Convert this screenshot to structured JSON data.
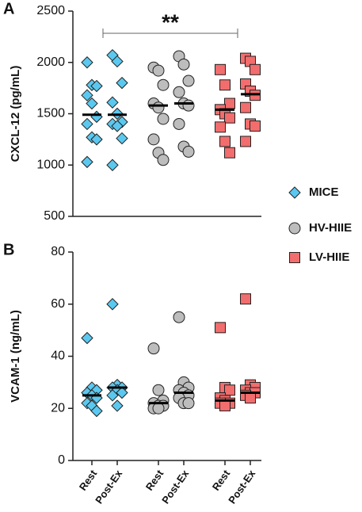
{
  "chart_data": [
    {
      "type": "dot",
      "panel": "A",
      "y_label": "CXCL-12 (pg/mL)",
      "ylim": [
        500,
        2500
      ],
      "yticks": [
        500,
        1000,
        1500,
        2000,
        2500
      ],
      "annotation": "**",
      "series": [
        {
          "name": "MICE",
          "color": "#5bc8ef",
          "marker": "diamond",
          "values": [
            [
              2000,
              1780,
              1770,
              1680,
              1600,
              1470,
              1400,
              1270,
              1250,
              1030
            ],
            [
              2070,
              2010,
              1800,
              1610,
              1500,
              1420,
              1400,
              1380,
              1260,
              1000
            ],
            null,
            null,
            null,
            null
          ],
          "medians": [
            1490,
            1490,
            null,
            null,
            null,
            null
          ]
        },
        {
          "name": "HV-HIIE",
          "color": "#bdbdbd",
          "marker": "circle",
          "values": [
            null,
            null,
            [
              1950,
              1920,
              1780,
              1600,
              1560,
              1450,
              1250,
              1120,
              1050
            ],
            [
              2060,
              1980,
              1820,
              1710,
              1600,
              1580,
              1400,
              1180,
              1130
            ],
            null,
            null
          ],
          "medians": [
            null,
            null,
            1580,
            1600,
            null,
            null
          ]
        },
        {
          "name": "LV-HIIE",
          "color": "#f26d6d",
          "marker": "square",
          "values": [
            null,
            null,
            null,
            null,
            [
              1930,
              1780,
              1600,
              1540,
              1500,
              1460,
              1370,
              1230,
              1120
            ],
            [
              2040,
              2010,
              1930,
              1790,
              1720,
              1680,
              1560,
              1400,
              1380,
              1230
            ]
          ],
          "medians": [
            null,
            null,
            null,
            null,
            1540,
            1690
          ]
        }
      ]
    },
    {
      "type": "dot",
      "panel": "B",
      "y_label": "VCAM-1 (ng/mL)",
      "ylim": [
        0,
        80
      ],
      "yticks": [
        0,
        20,
        40,
        60,
        80
      ],
      "categories": [
        "Rest",
        "Post-Ex",
        "Rest",
        "Post-Ex",
        "Rest",
        "Post-Ex"
      ],
      "series": [
        {
          "color": "#5bc8ef",
          "marker": "diamond",
          "values": [
            [
              47,
              28,
              27,
              26,
              25,
              24,
              22,
              21,
              19
            ],
            [
              60,
              29,
              28,
              28,
              27,
              26,
              25,
              21
            ],
            null,
            null,
            null,
            null
          ],
          "medians": [
            25,
            28,
            null,
            null,
            null,
            null
          ]
        },
        {
          "color": "#bdbdbd",
          "marker": "circle",
          "values": [
            null,
            null,
            [
              43,
              27,
              23,
              22,
              21,
              21,
              20,
              20
            ],
            [
              55,
              30,
              28,
              27,
              26,
              25,
              24,
              22,
              22
            ],
            null,
            null
          ],
          "medians": [
            null,
            null,
            22,
            26,
            null,
            null
          ]
        },
        {
          "color": "#f26d6d",
          "marker": "square",
          "values": [
            null,
            null,
            null,
            null,
            [
              51,
              28,
              27,
              24,
              23,
              22,
              22,
              21
            ],
            [
              62,
              29,
              28,
              27,
              26,
              26,
              25,
              24
            ]
          ],
          "medians": [
            null,
            null,
            null,
            null,
            23,
            26
          ]
        }
      ]
    }
  ]
}
